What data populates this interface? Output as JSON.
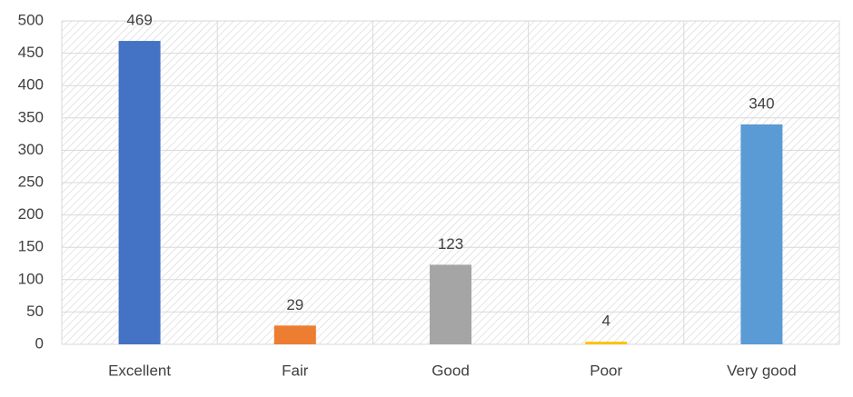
{
  "chart_data": {
    "type": "bar",
    "categories": [
      "Excellent",
      "Fair",
      "Good",
      "Poor",
      "Very good"
    ],
    "values": [
      469,
      29,
      123,
      4,
      340
    ],
    "colors": [
      "#4472c4",
      "#ed7d31",
      "#a5a5a5",
      "#ffc000",
      "#5b9bd5"
    ],
    "ylim": [
      0,
      500
    ],
    "yticks": [
      0,
      50,
      100,
      150,
      200,
      250,
      300,
      350,
      400,
      450,
      500
    ],
    "grid": true
  }
}
